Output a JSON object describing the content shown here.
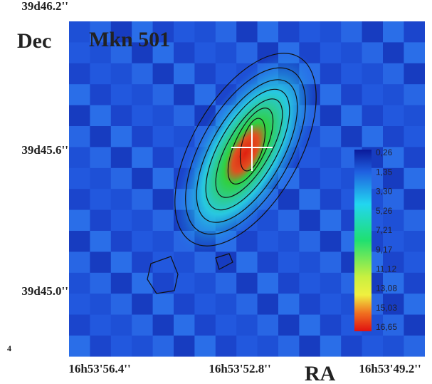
{
  "figure": {
    "title": "Mkn 501",
    "y_axis_label": "Dec",
    "x_axis_label": "RA",
    "y_ticks": [
      "39d46.2''",
      "39d45.6''",
      "39d45.0''"
    ],
    "x_ticks": [
      "16h53'56.4''",
      "16h53'52.8''",
      "16h53'49.2''"
    ],
    "colorbar_labels": [
      "0,26",
      "1,35",
      "3,30",
      "5,26",
      "7,21",
      "9,17",
      "11,12",
      "13,08",
      "15,03",
      "16,65"
    ],
    "corner_label": "4"
  }
}
